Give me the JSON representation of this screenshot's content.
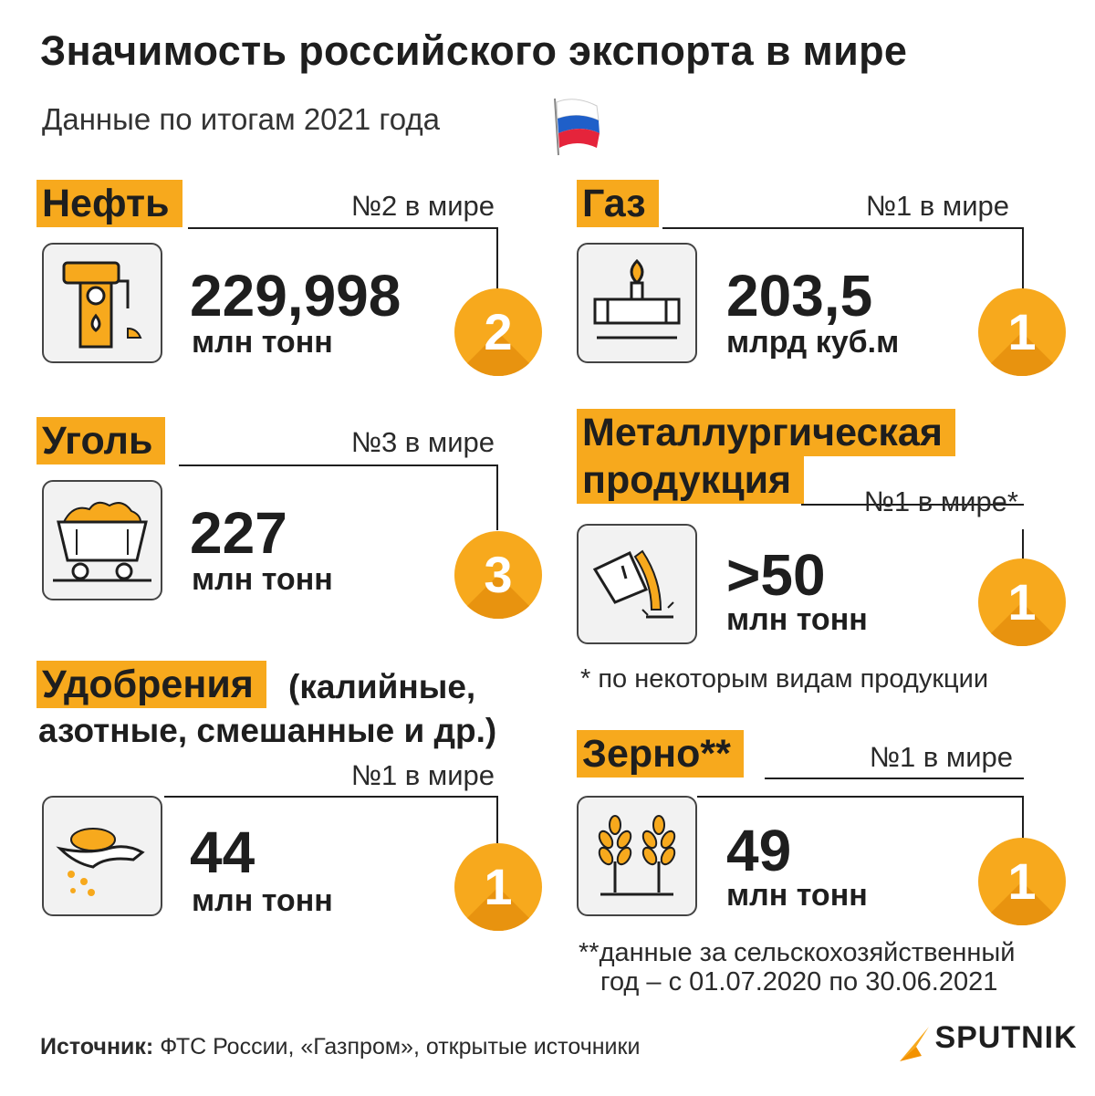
{
  "title": "Значимость российского экспорта в мире",
  "subtitle": "Данные по итогам 2021 года",
  "colors": {
    "accent": "#f7a91d",
    "text": "#1e1e1e"
  },
  "items": [
    {
      "id": "oil",
      "label": "Нефть",
      "rank": "№2 в мире",
      "value": "229,998",
      "unit": "млн тонн",
      "badge": "2",
      "icon": "oil-pump-icon"
    },
    {
      "id": "gas",
      "label": "Газ",
      "rank": "№1 в мире",
      "value": "203,5",
      "unit": "млрд куб.м",
      "badge": "1",
      "icon": "gas-pipe-icon"
    },
    {
      "id": "coal",
      "label": "Уголь",
      "rank": "№3 в мире",
      "value": "227",
      "unit": "млн тонн",
      "badge": "3",
      "icon": "coal-cart-icon"
    },
    {
      "id": "metal",
      "label_line1": "Металлургическая",
      "label_line2": "продукция",
      "rank": "№1 в мире*",
      "value": ">50",
      "unit": "млн тонн",
      "badge": "1",
      "icon": "molten-metal-icon"
    },
    {
      "id": "fert",
      "label": "Удобрения",
      "label_extra1": "(калийные,",
      "label_extra2": "азотные, смешанные и др.)",
      "rank": "№1 в мире",
      "value": "44",
      "unit": "млн тонн",
      "badge": "1",
      "icon": "fertilizer-hand-icon"
    },
    {
      "id": "grain",
      "label": "Зерно**",
      "rank": "№1 в мире",
      "value": "49",
      "unit": "млн тонн",
      "badge": "1",
      "icon": "wheat-icon"
    }
  ],
  "notes": {
    "metal": "* по некоторым видам продукции",
    "grain_line1": "**данные за сельскохозяйственный",
    "grain_line2": "год – с 01.07.2020 по 30.06.2021"
  },
  "footer": {
    "source_label": "Источник:",
    "source_text": " ФТС России, «Газпром», открытые источники"
  },
  "brand": "SPUTNIK"
}
